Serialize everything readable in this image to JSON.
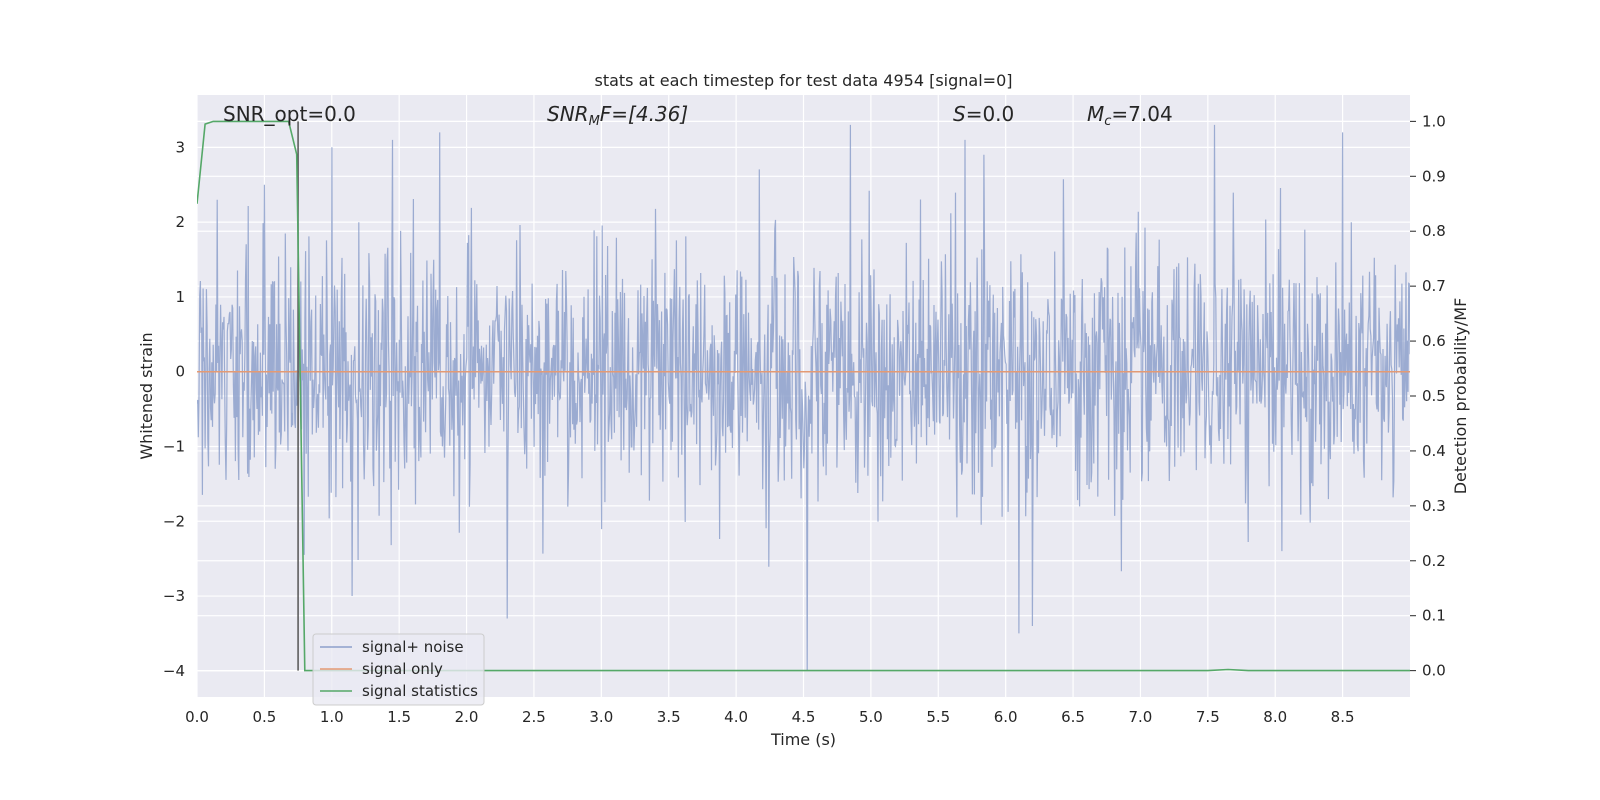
{
  "chart_data": {
    "type": "line",
    "title": "stats at each timestep for test data 4954 [signal=0]",
    "xlabel": "Time (s)",
    "ylabel": "Whitened strain",
    "y2label": "Detection probability/MF",
    "xlim": [
      0.0,
      9.0
    ],
    "ylim": [
      -4.35,
      3.7
    ],
    "y2lim": [
      -0.048,
      1.048
    ],
    "x_ticks": [
      0.0,
      0.5,
      1.0,
      1.5,
      2.0,
      2.5,
      3.0,
      3.5,
      4.0,
      4.5,
      5.0,
      5.5,
      6.0,
      6.5,
      7.0,
      7.5,
      8.0,
      8.5
    ],
    "x_tick_labels": [
      "0.0",
      "0.5",
      "1.0",
      "1.5",
      "2.0",
      "2.5",
      "3.0",
      "3.5",
      "4.0",
      "4.5",
      "5.0",
      "5.5",
      "6.0",
      "6.5",
      "7.0",
      "7.5",
      "8.0",
      "8.5"
    ],
    "y_ticks": [
      3,
      2,
      1,
      0,
      -1,
      -2,
      -3,
      -4
    ],
    "y_tick_labels": [
      "3",
      "2",
      "1",
      "0",
      "−1",
      "−2",
      "−3",
      "−4"
    ],
    "y2_ticks": [
      1.0,
      0.9,
      0.8,
      0.7,
      0.6,
      0.5,
      0.4,
      0.3,
      0.2,
      0.1,
      0.0
    ],
    "y2_tick_labels": [
      "1.0",
      "0.9",
      "0.8",
      "0.7",
      "0.6",
      "0.5",
      "0.4",
      "0.3",
      "0.2",
      "0.1",
      "0.0"
    ],
    "grid": true,
    "legend_position": "lower-left",
    "annotations": {
      "snr_opt": "SNR_opt=0.0",
      "snr_mf_label": "SNR",
      "snr_mf_sub": "M",
      "snr_mf_rest": "F=[4.36]",
      "s_label": "S",
      "s_rest": "=0.0",
      "mc_label": "M",
      "mc_sub": "c",
      "mc_rest": "=7.04"
    },
    "marker_time": 0.75,
    "series": [
      {
        "name": "signal+ noise",
        "color": "#8da0cb",
        "description_values": "dense noise, roughly Gaussian, std ~0.8, range approx -4.0 to 3.4",
        "n_points": 1800,
        "std": 0.8,
        "spikes": [
          [
            0.15,
            2.3
          ],
          [
            0.5,
            2.5
          ],
          [
            1.0,
            3.0
          ],
          [
            1.45,
            3.1
          ],
          [
            1.8,
            3.2
          ],
          [
            4.85,
            3.3
          ],
          [
            5.7,
            3.1
          ],
          [
            7.55,
            3.3
          ],
          [
            8.5,
            3.2
          ],
          [
            2.3,
            -3.3
          ],
          [
            4.53,
            -4.0
          ],
          [
            6.1,
            -3.5
          ],
          [
            6.2,
            -3.4
          ],
          [
            1.15,
            -3.0
          ]
        ]
      },
      {
        "name": "signal only",
        "color": "#e49a74",
        "x": [
          0.0,
          9.0
        ],
        "y": [
          0.0,
          0.0
        ]
      },
      {
        "name": "signal statistics",
        "color": "#55a868",
        "axis": "right",
        "x": [
          0.0,
          0.06,
          0.12,
          0.2,
          0.4,
          0.6,
          0.68,
          0.74,
          0.8,
          1.0,
          2.0,
          4.0,
          6.0,
          7.5,
          7.65,
          7.8,
          9.0
        ],
        "y": [
          0.85,
          0.995,
          1.0,
          1.0,
          1.0,
          1.0,
          1.0,
          0.94,
          0.0,
          0.0,
          0.0,
          0.0,
          0.0,
          0.0,
          0.002,
          0.0,
          0.0
        ]
      }
    ]
  }
}
